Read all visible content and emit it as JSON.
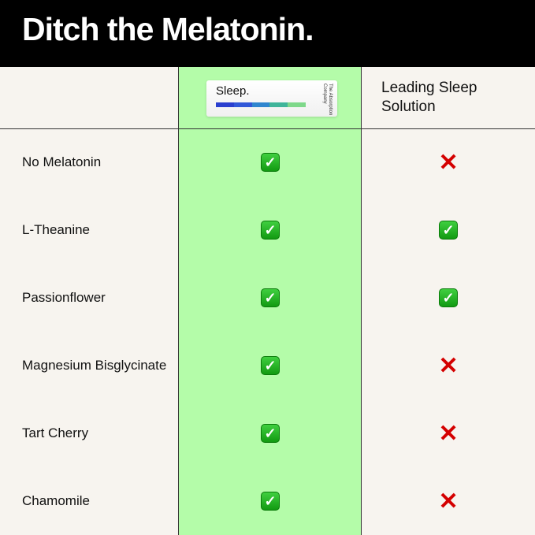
{
  "title": "Ditch the Melatonin.",
  "columns": {
    "product": {
      "packet_name": "Sleep.",
      "packet_brand": "The Absorption Company",
      "stripe_colors": [
        "#2a3fcf",
        "#3158d8",
        "#2f86cf",
        "#3fb59a",
        "#7ed88a"
      ]
    },
    "competitor": "Leading Sleep Solution"
  },
  "colors": {
    "header_bg": "#000000",
    "highlight_column": "#b4fca9",
    "background": "#f7f4ef",
    "check": "#1aa31a",
    "cross": "#d40000"
  },
  "rows": [
    {
      "label": "No Melatonin",
      "ours": "check",
      "theirs": "cross"
    },
    {
      "label": "L-Theanine",
      "ours": "check",
      "theirs": "check"
    },
    {
      "label": "Passionflower",
      "ours": "check",
      "theirs": "check"
    },
    {
      "label": "Magnesium Bisglycinate",
      "ours": "check",
      "theirs": "cross"
    },
    {
      "label": "Tart Cherry",
      "ours": "check",
      "theirs": "cross"
    },
    {
      "label": "Chamomile",
      "ours": "check",
      "theirs": "cross"
    }
  ]
}
